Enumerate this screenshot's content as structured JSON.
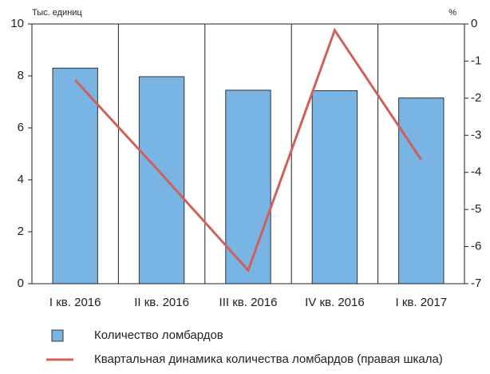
{
  "chart_data": {
    "type": "bar",
    "y_label": "Тыс. единиц",
    "y2_label": "%",
    "categories": [
      "I кв. 2016",
      "II кв. 2016",
      "III кв. 2016",
      "IV кв. 2016",
      "I кв. 2017"
    ],
    "series": [
      {
        "name": "Количество ломбардов",
        "type": "bar",
        "color": "#78b4e4",
        "axis": "y",
        "values": [
          8.3,
          7.97,
          7.45,
          7.43,
          7.15
        ]
      },
      {
        "name": "Квартальная динамика количества ломбардов (правая шкала)",
        "type": "line",
        "color": "#d0605a",
        "axis": "y2",
        "values": [
          -1.51,
          -4.05,
          -6.64,
          -0.17,
          -3.66
        ]
      }
    ],
    "ylim": [
      0,
      10
    ],
    "yticks": [
      0,
      2,
      4,
      6,
      8,
      10
    ],
    "y2lim": [
      -7,
      0
    ],
    "y2ticks": [
      0,
      -1,
      -2,
      -3,
      -4,
      -5,
      -6,
      -7
    ]
  }
}
